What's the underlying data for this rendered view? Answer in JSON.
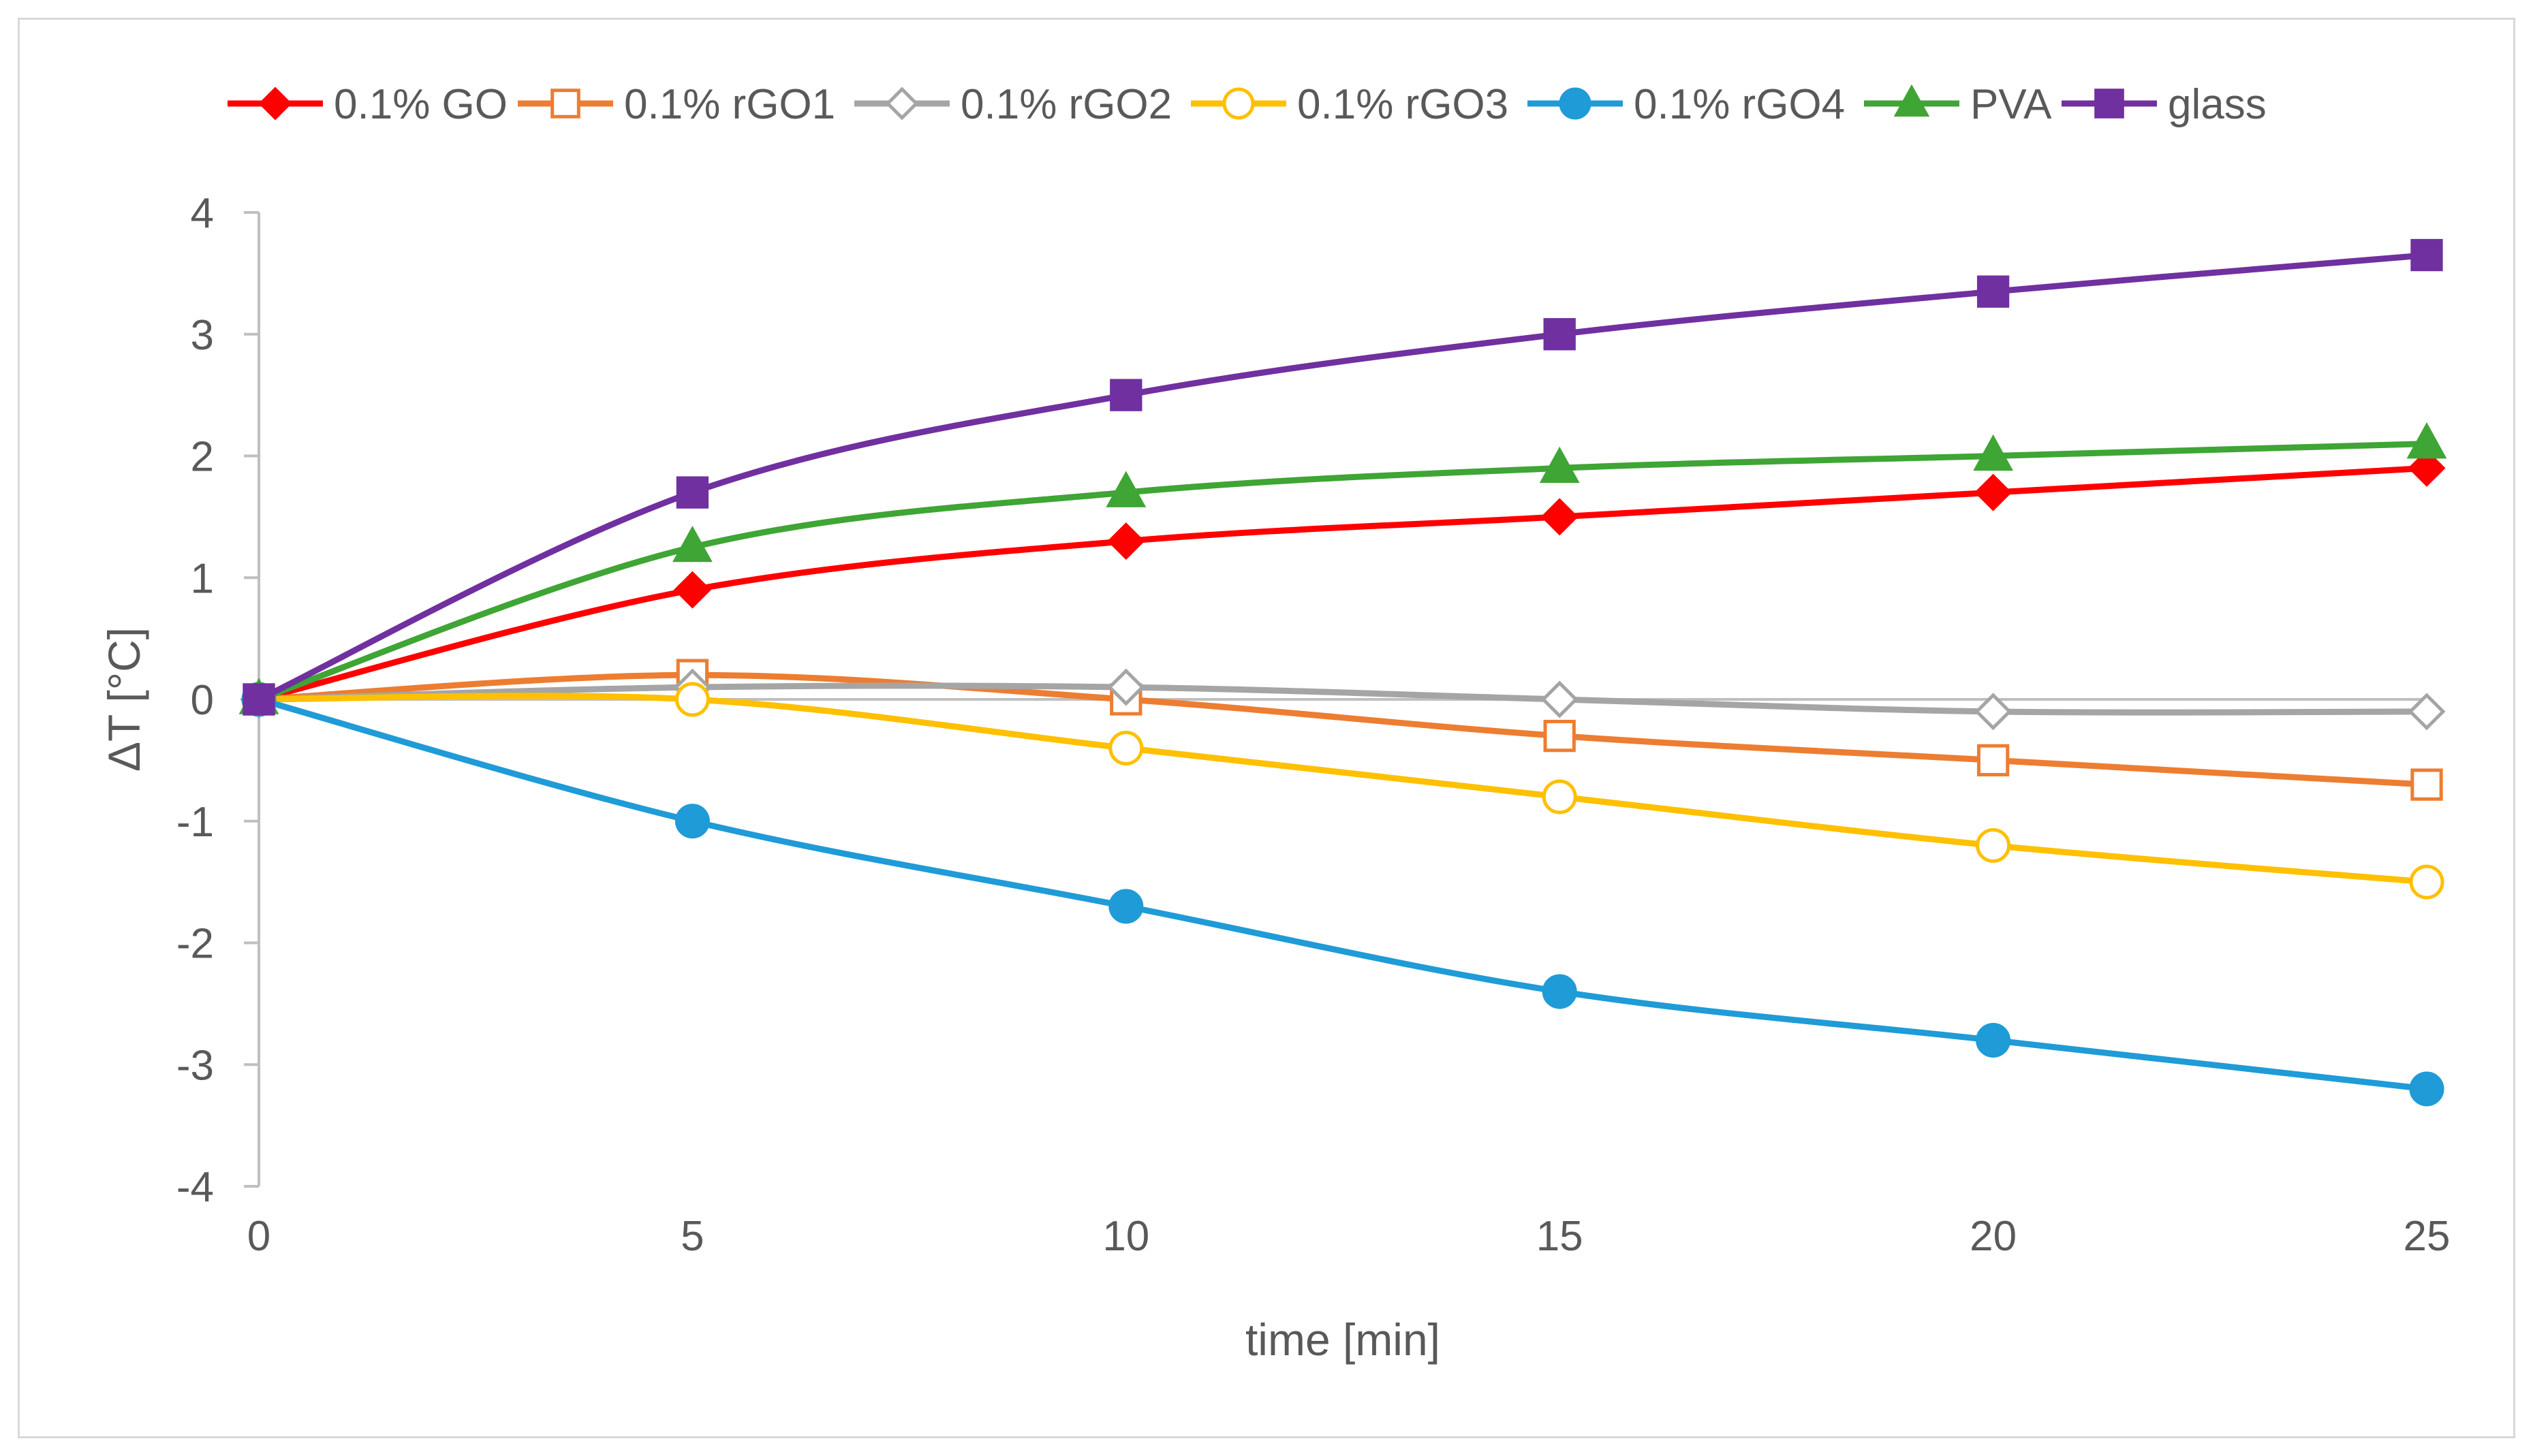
{
  "chart_data": {
    "type": "line",
    "title": "",
    "xlabel": "time [min]",
    "ylabel": "ΔT [°C]",
    "xlim": [
      0,
      25
    ],
    "ylim": [
      -4,
      4
    ],
    "x": [
      0,
      5,
      10,
      15,
      20,
      25
    ],
    "x_ticks": [
      "0",
      "5",
      "10",
      "15",
      "20",
      "25"
    ],
    "y_ticks": [
      "-4",
      "-3",
      "-2",
      "-1",
      "0",
      "1",
      "2",
      "3",
      "4"
    ],
    "grid": false,
    "smooth": true,
    "legend_position": "top",
    "series": [
      {
        "name": "0.1% GO",
        "color": "#ff0000",
        "marker": "diamond-filled",
        "values": [
          0,
          0.9,
          1.3,
          1.5,
          1.7,
          1.9
        ]
      },
      {
        "name": "0.1% rGO1",
        "color": "#ed7d31",
        "marker": "square-open",
        "values": [
          0,
          0.2,
          0.0,
          -0.3,
          -0.5,
          -0.7
        ]
      },
      {
        "name": "0.1% rGO2",
        "color": "#a5a5a5",
        "marker": "diamond-open",
        "values": [
          0,
          0.1,
          0.1,
          0.0,
          -0.1,
          -0.1
        ]
      },
      {
        "name": "0.1% rGO3",
        "color": "#ffc000",
        "marker": "circle-open",
        "values": [
          0,
          0.0,
          -0.4,
          -0.8,
          -1.2,
          -1.5
        ]
      },
      {
        "name": "0.1% rGO4",
        "color": "#1f9bd7",
        "marker": "circle-filled",
        "values": [
          0,
          -1.0,
          -1.7,
          -2.4,
          -2.8,
          -3.2
        ]
      },
      {
        "name": "PVA",
        "color": "#3fa535",
        "marker": "triangle-filled",
        "values": [
          0,
          1.25,
          1.7,
          1.9,
          2.0,
          2.1
        ]
      },
      {
        "name": "glass",
        "color": "#7030a0",
        "marker": "square-filled",
        "values": [
          0,
          1.7,
          2.5,
          3.0,
          3.35,
          3.65
        ]
      }
    ]
  }
}
